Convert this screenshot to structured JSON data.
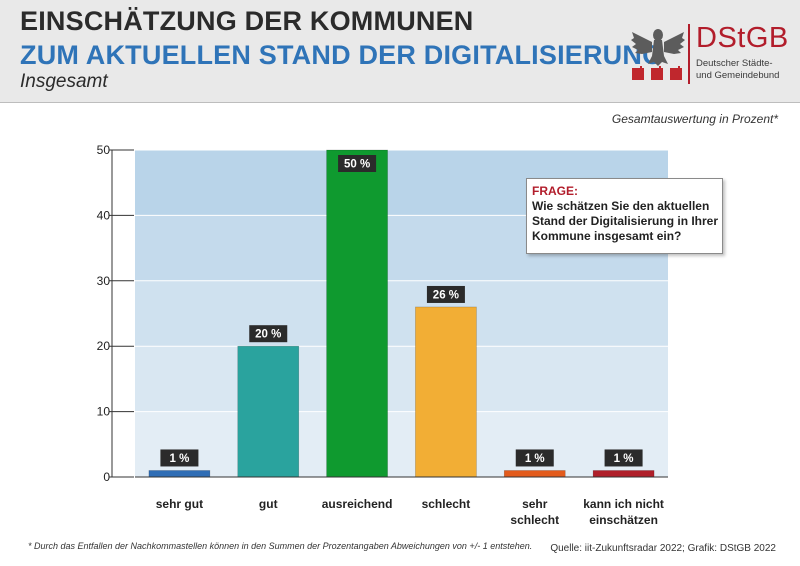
{
  "header": {
    "title_line1": "EINSCHÄTZUNG DER KOMMUNEN",
    "title_line2": "ZUM AKTUELLEN STAND DER DIGITALISIERUNG",
    "subtitle": "Insgesamt"
  },
  "logo": {
    "name": "DStGB",
    "subtitle_line1": "Deutscher Städte-",
    "subtitle_line2": "und Gemeindebund",
    "colors": {
      "brand": "#b21d2b"
    }
  },
  "measure_note": "Gesamtauswertung in Prozent*",
  "question": {
    "heading": "FRAGE:",
    "text": "Wie schätzen Sie den aktuellen Stand der Digitalisierung in Ihrer Kommune insgesamt ein?"
  },
  "chart_data": {
    "type": "bar",
    "categories": [
      "sehr gut",
      "gut",
      "ausreichend",
      "schlecht",
      "sehr schlecht",
      "kann ich nicht einschätzen"
    ],
    "category_display": [
      [
        "sehr gut"
      ],
      [
        "gut"
      ],
      [
        "ausreichend"
      ],
      [
        "schlecht"
      ],
      [
        "sehr",
        "schlecht"
      ],
      [
        "kann ich nicht",
        "einschätzen"
      ]
    ],
    "values": [
      1,
      20,
      50,
      26,
      1,
      1
    ],
    "data_labels": [
      "1 %",
      "20 %",
      "50 %",
      "26 %",
      "1 %",
      "1 %"
    ],
    "colors": [
      "#2f6db5",
      "#2aa39e",
      "#0f9a2f",
      "#f2ae35",
      "#e35b1c",
      "#b0202a"
    ],
    "ylim": [
      0,
      50
    ],
    "yticks": [
      0,
      10,
      20,
      30,
      40,
      50
    ],
    "grid": true,
    "legend": "none",
    "title": "",
    "xlabel": "",
    "ylabel": ""
  },
  "footer": {
    "footnote": "*     Durch das Entfallen der Nachkommastellen können in den Summen der Prozentangaben Abweichungen von +/- 1 entstehen.",
    "source": "Quelle: iit-Zukunftsradar 2022; Grafik: DStGB 2022"
  }
}
